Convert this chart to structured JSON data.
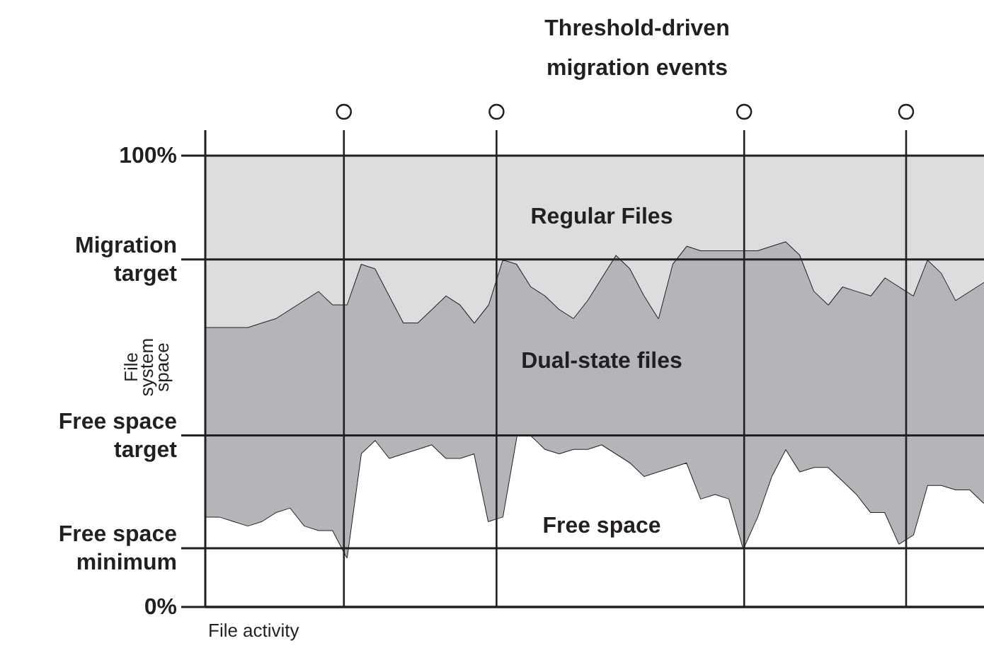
{
  "chart_data": {
    "type": "area",
    "stacked": true,
    "title": "Threshold-driven\nmigration events",
    "ylabel": "File system space",
    "xlabel": "File activity",
    "categories": [
      null,
      null,
      null,
      null,
      null,
      null,
      null,
      null,
      null,
      null,
      null,
      null,
      null,
      null,
      null,
      null,
      null,
      null,
      null,
      null,
      null,
      null,
      null,
      null,
      null,
      null,
      null,
      null,
      null,
      null,
      null,
      null,
      null,
      null,
      null,
      null,
      null,
      null,
      null,
      null,
      null,
      null,
      null,
      null,
      null,
      null,
      null,
      null,
      null,
      null,
      null,
      null,
      null,
      null,
      null,
      null
    ],
    "series": [
      {
        "name": "Free space",
        "color": "#ffffff",
        "values": [
          20,
          20,
          19,
          18,
          19,
          21,
          22,
          18,
          17,
          17,
          11,
          34,
          37,
          33,
          34,
          35,
          36,
          33,
          33,
          34,
          19,
          20,
          38,
          38,
          35,
          34,
          35,
          35,
          36,
          34,
          32,
          29,
          30,
          31,
          32,
          24,
          25,
          24,
          13,
          20,
          29,
          35,
          30,
          31,
          31,
          28,
          25,
          21,
          21,
          14,
          16,
          27,
          27,
          26,
          26,
          23
        ]
      },
      {
        "name": "Dual-state files",
        "color": "#b4b5b8",
        "values": [
          42,
          42,
          43,
          44,
          44,
          43,
          44,
          50,
          53,
          50,
          56,
          42,
          38,
          36,
          29,
          28,
          30,
          36,
          34,
          29,
          48,
          57,
          38,
          33,
          34,
          32,
          29,
          33,
          37,
          44,
          43,
          40,
          34,
          45,
          48,
          55,
          54,
          55,
          66,
          59,
          51,
          46,
          48,
          39,
          36,
          43,
          45,
          48,
          52,
          57,
          53,
          50,
          47,
          42,
          44,
          49
        ]
      },
      {
        "name": "Regular Files",
        "color": "#dcdddf",
        "values": [
          38,
          38,
          38,
          38,
          37,
          36,
          34,
          32,
          30,
          33,
          33,
          24,
          25,
          31,
          37,
          37,
          34,
          31,
          33,
          37,
          33,
          23,
          24,
          29,
          31,
          34,
          36,
          32,
          27,
          22,
          25,
          31,
          36,
          24,
          20,
          21,
          21,
          21,
          21,
          21,
          20,
          19,
          22,
          30,
          33,
          29,
          30,
          31,
          27,
          29,
          31,
          23,
          26,
          32,
          30,
          28
        ]
      }
    ],
    "ylim": [
      0,
      100
    ],
    "yticks": [
      {
        "value": 0,
        "label": "0%"
      },
      {
        "value": 13,
        "label": "Free space\nminimum"
      },
      {
        "value": 38,
        "label": "Free space\ntarget"
      },
      {
        "value": 77,
        "label": "Migration\ntarget"
      },
      {
        "value": 100,
        "label": "100%"
      }
    ],
    "grid": "y"
  }
}
